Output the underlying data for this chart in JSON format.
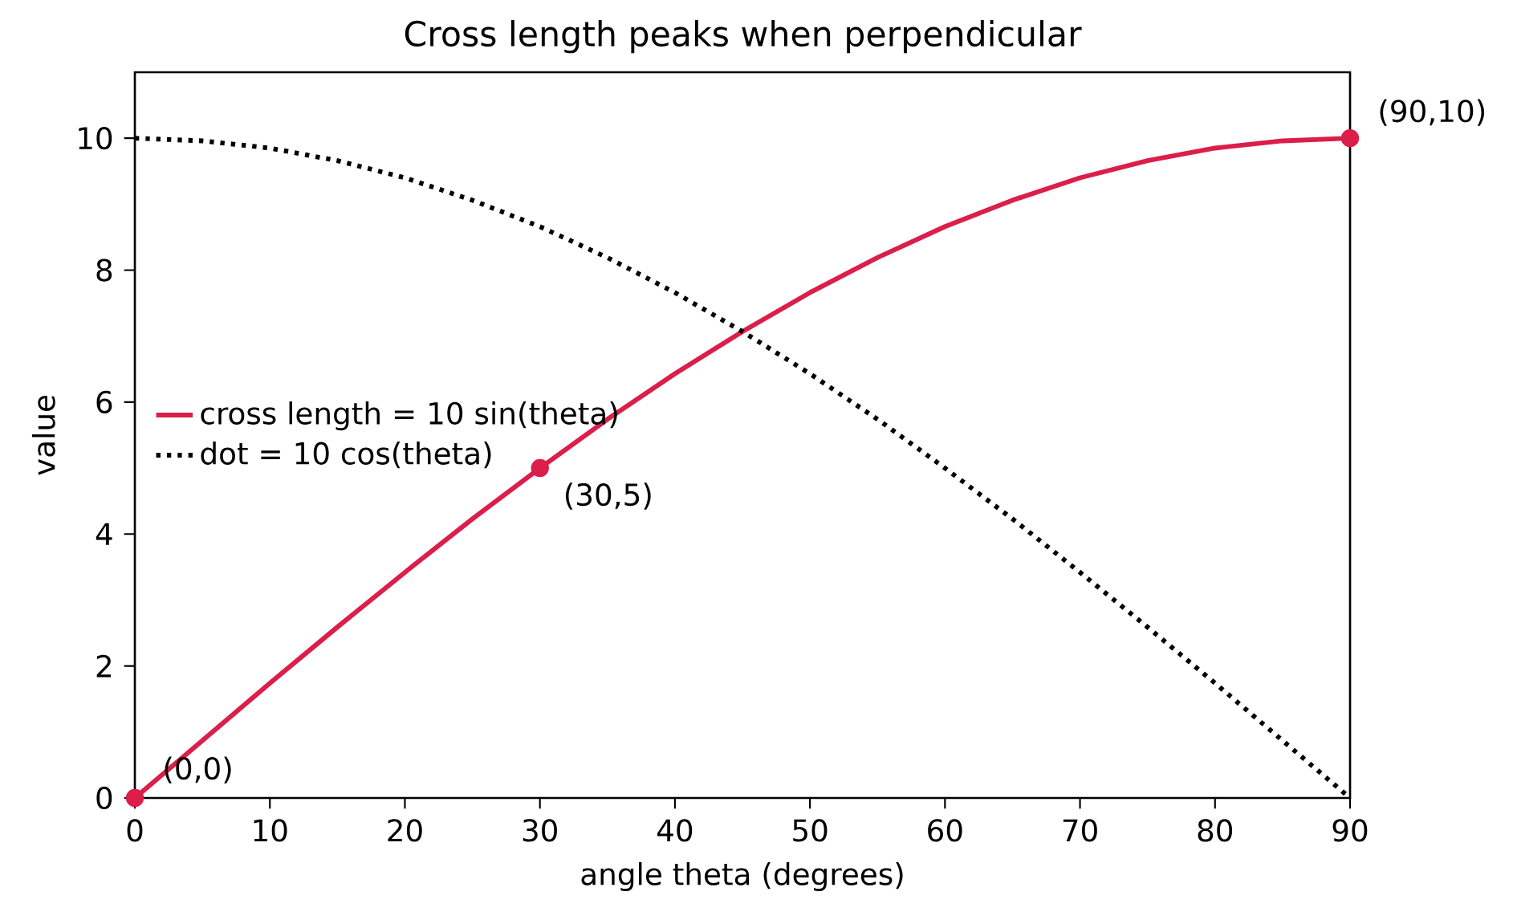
{
  "chart_data": {
    "type": "line",
    "title": "Cross length peaks when perpendicular",
    "xlabel": "angle theta (degrees)",
    "ylabel": "value",
    "xlim": [
      0,
      90
    ],
    "ylim": [
      0,
      11
    ],
    "xticks": [
      0,
      10,
      20,
      30,
      40,
      50,
      60,
      70,
      80,
      90
    ],
    "yticks": [
      0,
      2,
      4,
      6,
      8,
      10
    ],
    "legend": "left",
    "grid": false,
    "series": [
      {
        "name": "cross length = 10 sin(theta)",
        "color": "#dc1e4a",
        "line_style": "solid",
        "marker": "none",
        "x": [
          0,
          5,
          10,
          15,
          20,
          25,
          30,
          35,
          40,
          45,
          50,
          55,
          60,
          65,
          70,
          75,
          80,
          85,
          90
        ],
        "values": [
          0,
          0.87,
          1.74,
          2.59,
          3.42,
          4.23,
          5,
          5.74,
          6.43,
          7.07,
          7.66,
          8.19,
          8.66,
          9.06,
          9.4,
          9.66,
          9.85,
          9.96,
          10
        ]
      },
      {
        "name": "dot = 10 cos(theta)",
        "color": "#000000",
        "line_style": "dotted",
        "marker": "none",
        "x": [
          0,
          5,
          10,
          15,
          20,
          25,
          30,
          35,
          40,
          45,
          50,
          55,
          60,
          65,
          70,
          75,
          80,
          85,
          90
        ],
        "values": [
          10,
          9.96,
          9.85,
          9.66,
          9.4,
          9.06,
          8.66,
          8.19,
          7.66,
          7.07,
          6.43,
          5.74,
          5,
          4.23,
          3.42,
          2.59,
          1.74,
          0.87,
          0
        ]
      },
      {
        "type": "scatter",
        "color": "#dc1e4a",
        "marker": "circle",
        "x": [
          0,
          30,
          90
        ],
        "values": [
          0,
          5,
          10
        ]
      }
    ],
    "annotations": [
      {
        "text": "(0,0)",
        "x": 0,
        "y": 0
      },
      {
        "text": "(30,5)",
        "x": 30,
        "y": 5
      },
      {
        "text": "(90,10)",
        "x": 90,
        "y": 10
      }
    ]
  }
}
